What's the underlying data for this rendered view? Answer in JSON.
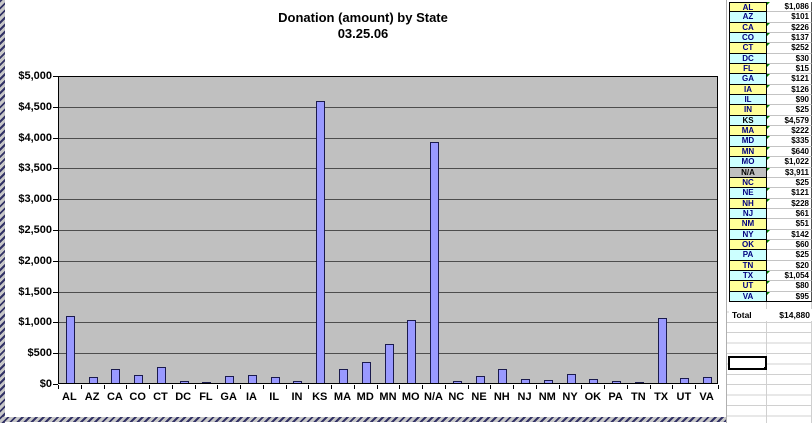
{
  "chart_data": {
    "type": "bar",
    "title": "Donation (amount) by State",
    "subtitle": "03.25.06",
    "xlabel": "",
    "ylabel": "",
    "categories": [
      "AL",
      "AZ",
      "CA",
      "CO",
      "CT",
      "DC",
      "FL",
      "GA",
      "IA",
      "IL",
      "IN",
      "KS",
      "MA",
      "MD",
      "MN",
      "MO",
      "N/A",
      "NC",
      "NE",
      "NH",
      "NJ",
      "NM",
      "NY",
      "OK",
      "PA",
      "TN",
      "TX",
      "UT",
      "VA"
    ],
    "values": [
      1086,
      101,
      226,
      137,
      252,
      30,
      15,
      121,
      126,
      90,
      25,
      4579,
      222,
      335,
      640,
      1022,
      3911,
      25,
      121,
      228,
      61,
      51,
      142,
      60,
      25,
      20,
      1054,
      80,
      95
    ],
    "ylim": [
      0,
      5000
    ],
    "ytick_step": 500,
    "ytick_labels_top_to_bottom": [
      "$5,000",
      "$4,500",
      "$4,000",
      "$3,500",
      "$3,000",
      "$2,500",
      "$2,000",
      "$1,500",
      "$1,000",
      "$500",
      "$0"
    ],
    "grid": true,
    "legend": false,
    "bar_color": "#9999ff",
    "plot_bg": "#c0c0c0"
  },
  "table": {
    "rows": [
      {
        "state": "AL",
        "amount": "$1,086",
        "fill": "#ffff99",
        "state_color": "#000080",
        "flag": true
      },
      {
        "state": "AZ",
        "amount": "$101",
        "fill": "#ccffff",
        "state_color": "#000080",
        "flag": false
      },
      {
        "state": "CA",
        "amount": "$226",
        "fill": "#ffff99",
        "state_color": "#000080",
        "flag": true
      },
      {
        "state": "CO",
        "amount": "$137",
        "fill": "#ccffff",
        "state_color": "#000080",
        "flag": true
      },
      {
        "state": "CT",
        "amount": "$252",
        "fill": "#ffff99",
        "state_color": "#000080",
        "flag": true
      },
      {
        "state": "DC",
        "amount": "$30",
        "fill": "#ccffff",
        "state_color": "#000080",
        "flag": false
      },
      {
        "state": "FL",
        "amount": "$15",
        "fill": "#ffff99",
        "state_color": "#000080",
        "flag": true
      },
      {
        "state": "GA",
        "amount": "$121",
        "fill": "#ccffff",
        "state_color": "#000080",
        "flag": true
      },
      {
        "state": "IA",
        "amount": "$126",
        "fill": "#ffff99",
        "state_color": "#000080",
        "flag": true
      },
      {
        "state": "IL",
        "amount": "$90",
        "fill": "#ccffff",
        "state_color": "#000080",
        "flag": false
      },
      {
        "state": "IN",
        "amount": "$25",
        "fill": "#ffff99",
        "state_color": "#000080",
        "flag": true
      },
      {
        "state": "KS",
        "amount": "$4,579",
        "fill": "#ccffff",
        "state_color": "#000000",
        "flag": true
      },
      {
        "state": "MA",
        "amount": "$222",
        "fill": "#ffff99",
        "state_color": "#000080",
        "flag": true
      },
      {
        "state": "MD",
        "amount": "$335",
        "fill": "#ccffff",
        "state_color": "#000080",
        "flag": true
      },
      {
        "state": "MN",
        "amount": "$640",
        "fill": "#ffff99",
        "state_color": "#000080",
        "flag": true
      },
      {
        "state": "MO",
        "amount": "$1,022",
        "fill": "#ccffff",
        "state_color": "#000080",
        "flag": true
      },
      {
        "state": "N/A",
        "amount": "$3,911",
        "fill": "#c0c0c0",
        "state_color": "#000000",
        "flag": true
      },
      {
        "state": "NC",
        "amount": "$25",
        "fill": "#ffff99",
        "state_color": "#000080",
        "flag": false
      },
      {
        "state": "NE",
        "amount": "$121",
        "fill": "#ccffff",
        "state_color": "#000080",
        "flag": true
      },
      {
        "state": "NH",
        "amount": "$228",
        "fill": "#ffff99",
        "state_color": "#000080",
        "flag": true
      },
      {
        "state": "NJ",
        "amount": "$61",
        "fill": "#ccffff",
        "state_color": "#000080",
        "flag": false
      },
      {
        "state": "NM",
        "amount": "$51",
        "fill": "#ffff99",
        "state_color": "#000080",
        "flag": false
      },
      {
        "state": "NY",
        "amount": "$142",
        "fill": "#ccffff",
        "state_color": "#000080",
        "flag": true
      },
      {
        "state": "OK",
        "amount": "$60",
        "fill": "#ffff99",
        "state_color": "#000080",
        "flag": true
      },
      {
        "state": "PA",
        "amount": "$25",
        "fill": "#ccffff",
        "state_color": "#000080",
        "flag": false
      },
      {
        "state": "TN",
        "amount": "$20",
        "fill": "#ffff99",
        "state_color": "#000080",
        "flag": false
      },
      {
        "state": "TX",
        "amount": "$1,054",
        "fill": "#ccffff",
        "state_color": "#000080",
        "flag": true
      },
      {
        "state": "UT",
        "amount": "$80",
        "fill": "#ffff99",
        "state_color": "#000080",
        "flag": true
      },
      {
        "state": "VA",
        "amount": "$95",
        "fill": "#ccffff",
        "state_color": "#000080",
        "flag": true
      }
    ],
    "total_label": "Total",
    "total_value": "$14,880"
  },
  "colors": {
    "bar_fill": "#9999ff",
    "bar_border": "#1a1a4d",
    "plot_background": "#c0c0c0",
    "yellow_cell": "#ffff99",
    "cyan_cell": "#ccffff",
    "gray_cell": "#c0c0c0",
    "state_text": "#000080",
    "flag_indicator": "#008000"
  }
}
